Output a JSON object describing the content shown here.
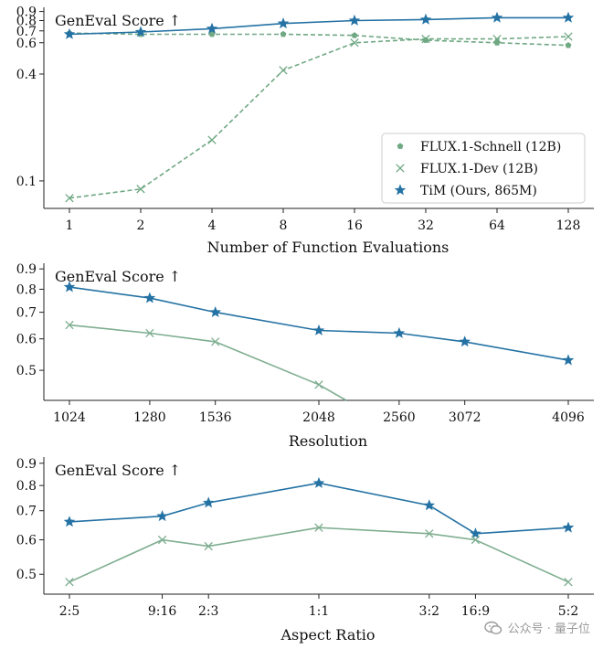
{
  "chart_data": [
    {
      "type": "line",
      "corner_label": "GenEval Score ↑",
      "xlabel": "Number of Function Evaluations",
      "categories": [
        "1",
        "2",
        "4",
        "8",
        "16",
        "32",
        "64",
        "128"
      ],
      "y_scale": "log",
      "ylim": [
        0.07,
        0.95
      ],
      "yticks": [
        0.1,
        0.4,
        0.6,
        0.7,
        0.8,
        0.9
      ],
      "legend_position": "lower-right",
      "series": [
        {
          "name": "FLUX.1-Schnell (12B)",
          "marker": "pentagon",
          "style": "dashed",
          "color": "#6fa883",
          "values": [
            0.68,
            0.67,
            0.67,
            0.67,
            0.66,
            0.62,
            0.6,
            0.58
          ]
        },
        {
          "name": "FLUX.1-Dev (12B)",
          "marker": "x",
          "style": "dashed",
          "color": "#6fa883",
          "values": [
            0.08,
            0.09,
            0.17,
            0.42,
            0.6,
            0.63,
            0.63,
            0.65
          ]
        },
        {
          "name": "TiM (Ours, 865M)",
          "marker": "star",
          "style": "solid",
          "color": "#2472a4",
          "values": [
            0.67,
            0.69,
            0.72,
            0.77,
            0.8,
            0.81,
            0.83,
            0.83
          ]
        }
      ]
    },
    {
      "type": "line",
      "corner_label": "GenEval Score ↑",
      "xlabel": "Resolution",
      "x": [
        1024,
        1280,
        1536,
        2048,
        2560,
        3072,
        4096
      ],
      "xticks": [
        "1024",
        "1280",
        "1536",
        "2048",
        "2560",
        "3072",
        "4096"
      ],
      "x_scale": "log",
      "y_scale": "log",
      "ylim": [
        0.42,
        0.93
      ],
      "yticks": [
        0.5,
        0.6,
        0.7,
        0.8,
        0.9
      ],
      "series": [
        {
          "marker": "star",
          "color": "#2472a4",
          "values": [
            0.81,
            0.76,
            0.7,
            0.63,
            0.62,
            0.59,
            0.53
          ]
        },
        {
          "marker": "x",
          "color": "#7fae91",
          "values": [
            0.65,
            0.62,
            0.59,
            0.46,
            null,
            null,
            null
          ],
          "drop_to": {
            "x": 2210,
            "y": 0.42
          }
        }
      ]
    },
    {
      "type": "line",
      "corner_label": "GenEval Score ↑",
      "xlabel": "Aspect Ratio",
      "x": [
        0.4,
        0.5625,
        0.6667,
        1.0,
        1.5,
        1.7778,
        2.5
      ],
      "xticks": [
        "2:5",
        "9:16",
        "2:3",
        "1:1",
        "3:2",
        "16:9",
        "5:2"
      ],
      "x_scale": "log",
      "y_scale": "log",
      "ylim": [
        0.45,
        0.93
      ],
      "yticks": [
        0.5,
        0.6,
        0.7,
        0.8,
        0.9
      ],
      "series": [
        {
          "marker": "star",
          "color": "#2472a4",
          "values": [
            0.66,
            0.68,
            0.73,
            0.81,
            0.72,
            0.62,
            0.64
          ]
        },
        {
          "marker": "x",
          "color": "#7fae91",
          "values": [
            0.48,
            0.6,
            0.58,
            0.64,
            0.62,
            0.6,
            0.48
          ]
        }
      ]
    }
  ],
  "watermark": {
    "text": "公众号 · 量子位",
    "icon": "wechat-icon"
  }
}
